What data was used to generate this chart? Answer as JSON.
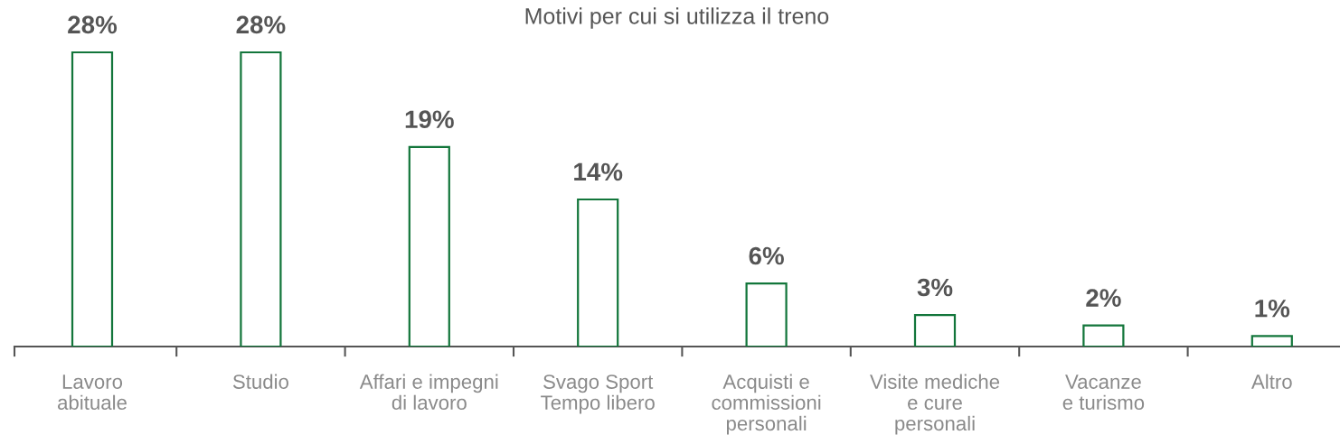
{
  "chart_data": {
    "type": "bar",
    "title": "Motivi per cui si utilizza il treno",
    "categories": [
      "Lavoro\nabituale",
      "Studio",
      "Affari e impegni\ndi lavoro",
      "Svago Sport\nTempo libero",
      "Acquisti e\ncommissioni\npersonali",
      "Visite mediche\ne cure\npersonali",
      "Vacanze\ne turismo",
      "Altro"
    ],
    "values": [
      28,
      28,
      19,
      14,
      6,
      3,
      2,
      1
    ],
    "value_labels": [
      "28%",
      "28%",
      "19%",
      "14%",
      "6%",
      "3%",
      "2%",
      "1%"
    ],
    "color": "#13763b"
  }
}
